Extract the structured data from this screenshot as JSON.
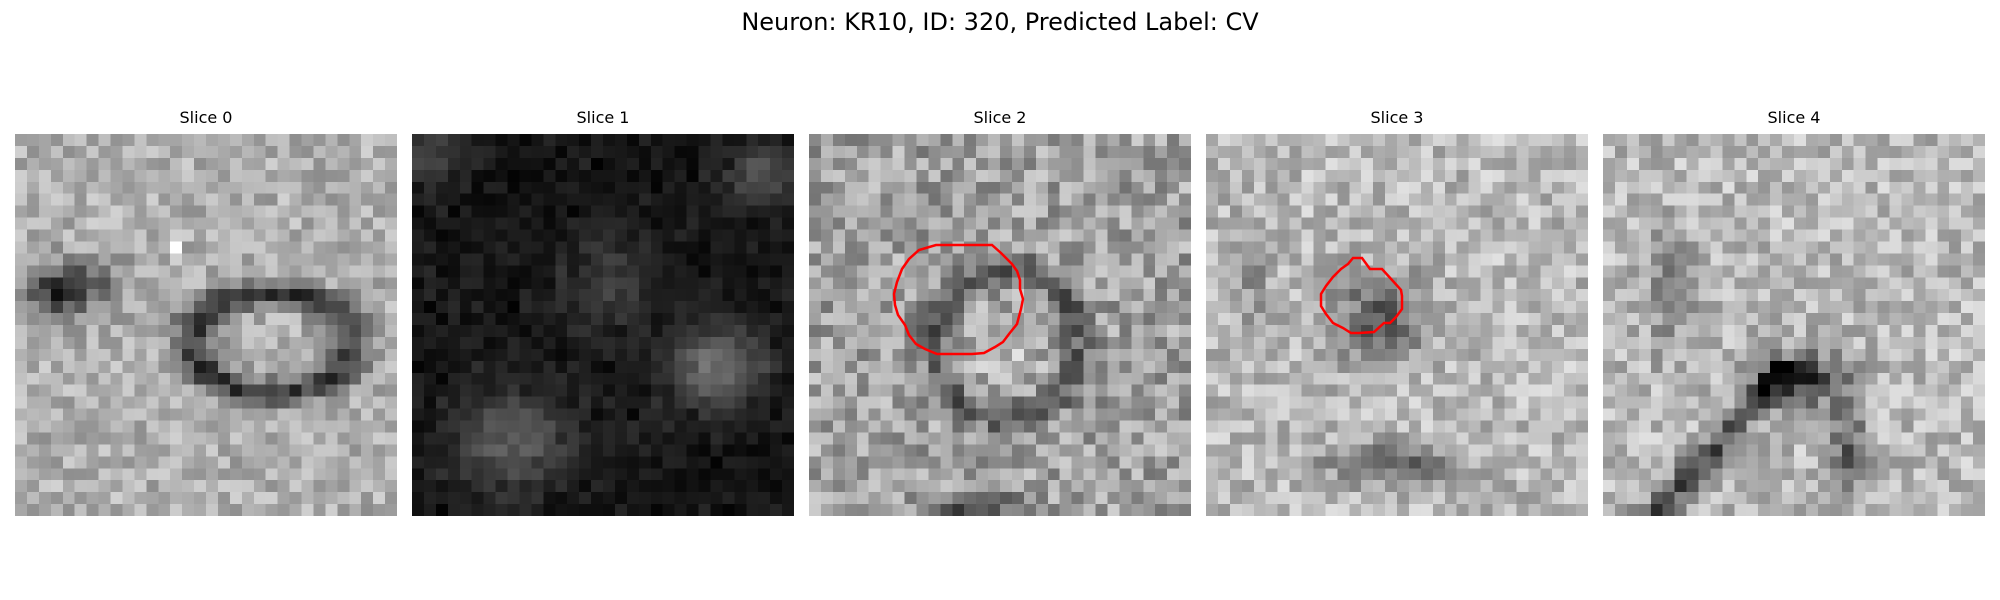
{
  "figure": {
    "title": "Neuron: KR10, ID: 320, Predicted Label: CV"
  },
  "colors": {
    "contour": "#ff0000",
    "background": "#ffffff",
    "colormap": "gray"
  },
  "panels": [
    {
      "title": "Slice 0",
      "has_contour": false
    },
    {
      "title": "Slice 1",
      "has_contour": false
    },
    {
      "title": "Slice 2",
      "has_contour": true
    },
    {
      "title": "Slice 3",
      "has_contour": true
    },
    {
      "title": "Slice 4",
      "has_contour": false
    }
  ]
}
